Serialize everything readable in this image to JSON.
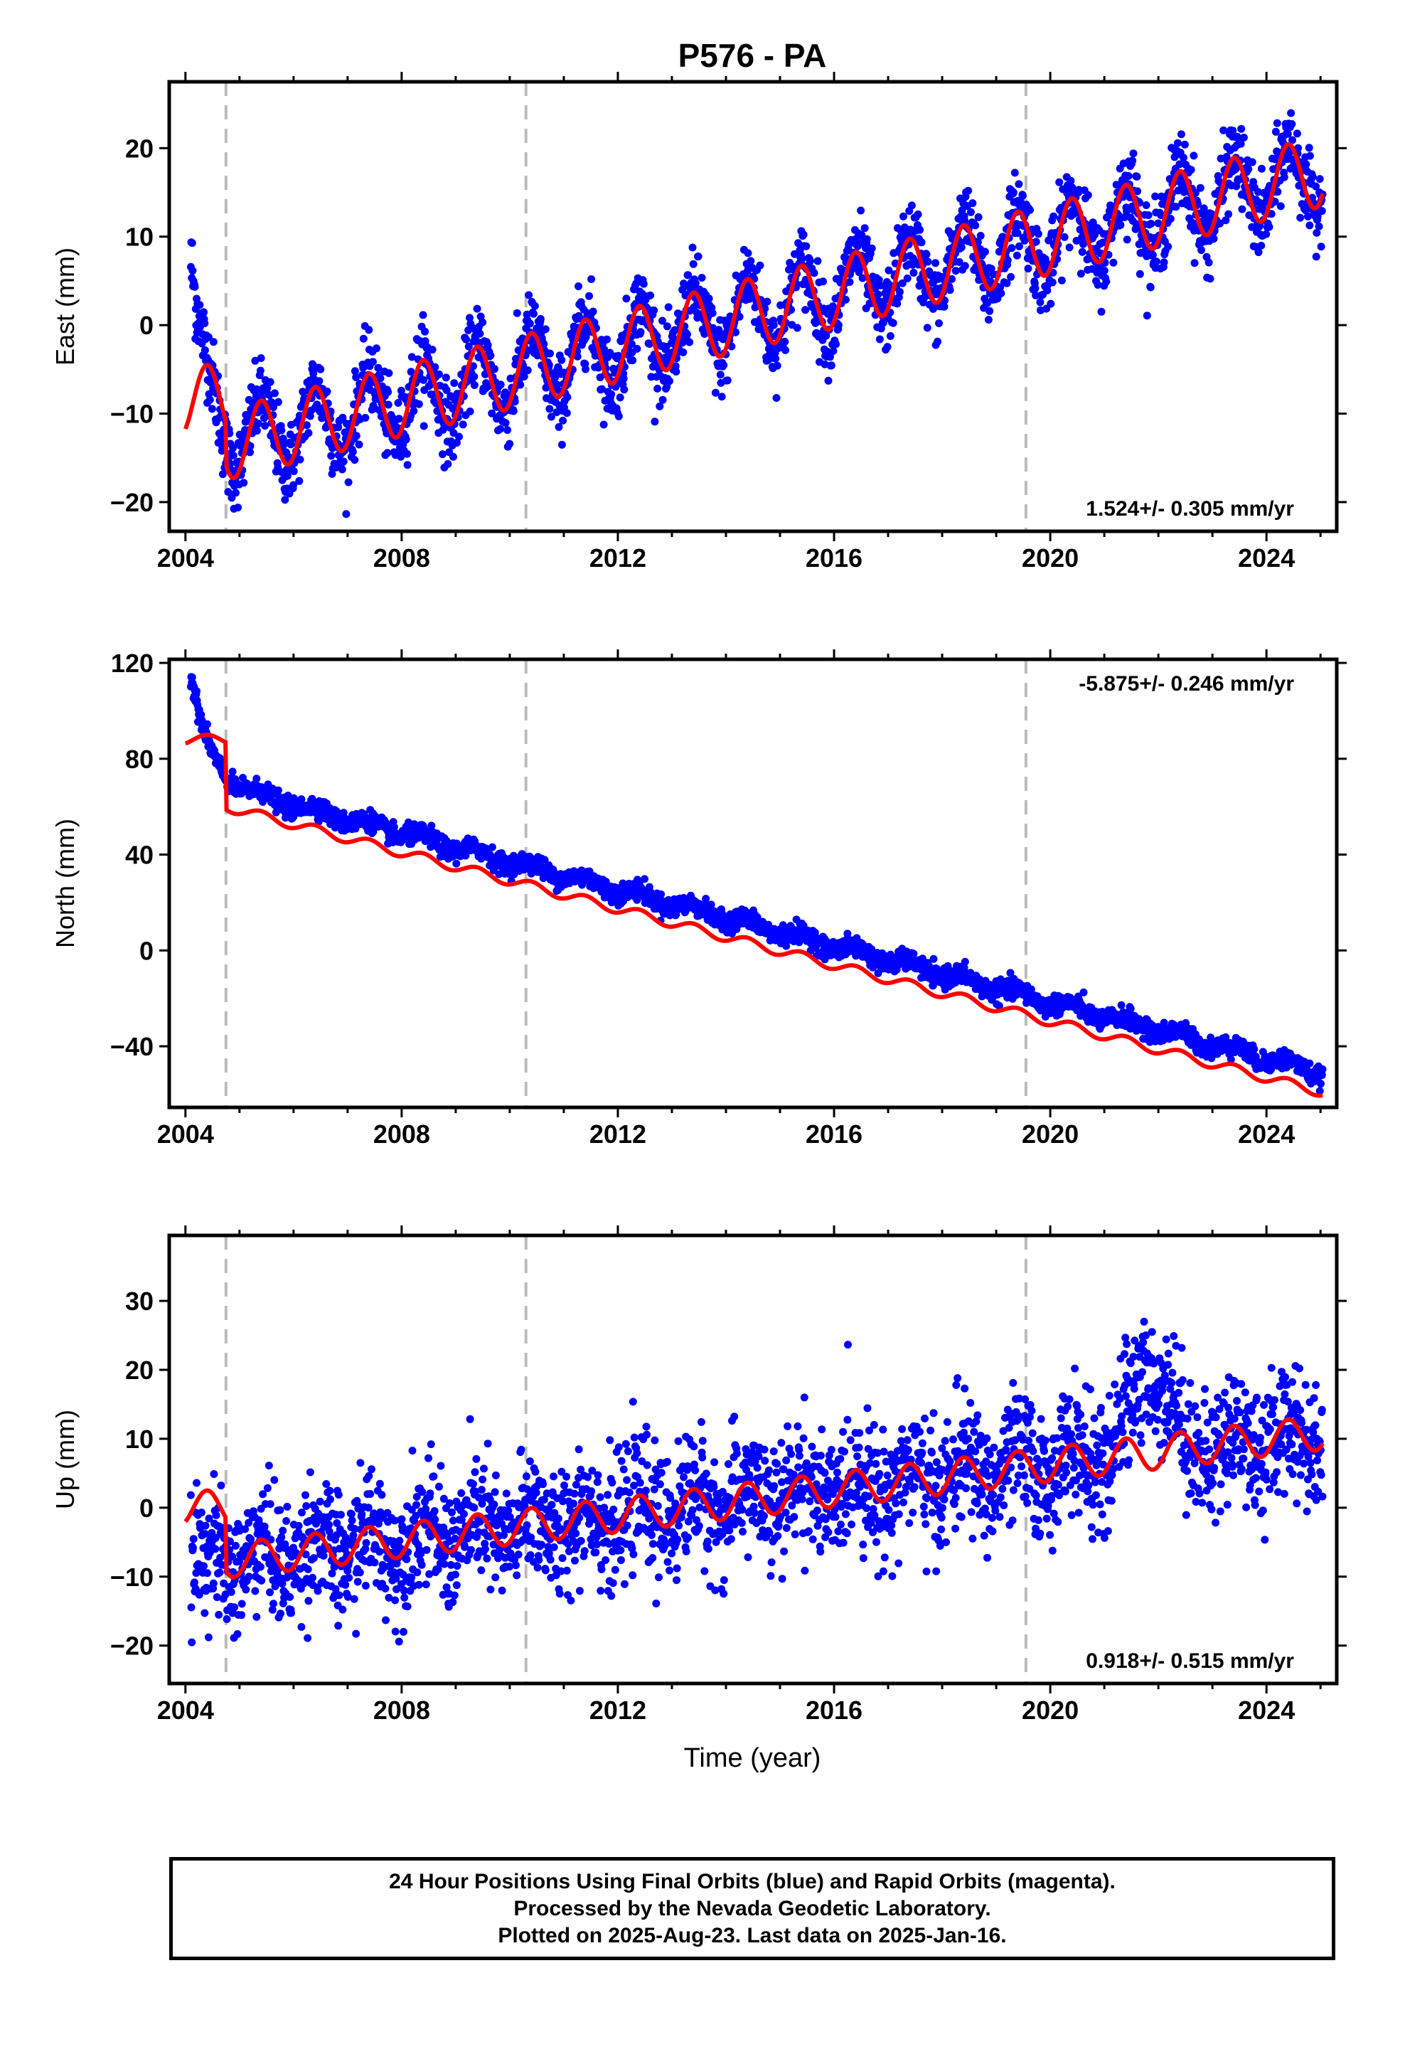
{
  "figure": {
    "title": "P576 - PA",
    "xlabel": "Time (year)",
    "colors": {
      "points": "#0000ff",
      "model": "#ff0000",
      "offsets": "#bbbbbb",
      "frame": "#000000"
    }
  },
  "chart_data": [
    {
      "type": "scatter",
      "name": "East",
      "ylabel": "East (mm)",
      "xlim": [
        2003.7,
        2025.3
      ],
      "ylim": [
        -23.3,
        27.5
      ],
      "x_ticks": [
        "2004",
        "2008",
        "2012",
        "2016",
        "2020",
        "2024"
      ],
      "y_ticks": [
        -20,
        -10,
        0,
        10,
        20
      ],
      "grid": false,
      "rate_label": "1.524+/- 0.305 mm/yr",
      "rate_position": "bottom-right",
      "offset_lines": [
        2004.75,
        2010.3,
        2019.55
      ],
      "series": [
        {
          "name": "24 Hour Positions (Final Orbits)",
          "style": "points",
          "x_range": [
            2004.1,
            2025.04
          ],
          "trend_anchor": {
            "x": 2004.1,
            "y": -14.5
          },
          "rate": 1.524,
          "seasonal_amplitude": 4.0,
          "scatter": 2.2,
          "initial_transient": {
            "start": 8.5,
            "decay_years": 0.25
          }
        },
        {
          "name": "Model",
          "style": "line",
          "x_range": [
            2004.0,
            2025.04
          ],
          "trend_anchor": {
            "x": 2004.1,
            "y": -14.5
          },
          "rate": 1.524,
          "seasonal_amplitude": 4.0
        }
      ]
    },
    {
      "type": "scatter",
      "name": "North",
      "ylabel": "North (mm)",
      "xlim": [
        2003.7,
        2025.3
      ],
      "ylim": [
        -65.5,
        121.5
      ],
      "x_ticks": [
        "2004",
        "2008",
        "2012",
        "2016",
        "2020",
        "2024"
      ],
      "y_ticks": [
        -40,
        0,
        40,
        80,
        120
      ],
      "grid": false,
      "rate_label": "-5.875+/- 0.246 mm/yr",
      "rate_position": "top-right",
      "offset_lines": [
        2004.75,
        2010.3,
        2019.55
      ],
      "series": [
        {
          "name": "24 Hour Positions (Final Orbits)",
          "style": "points",
          "x_range": [
            2004.1,
            2025.04
          ],
          "trend_anchor": {
            "x": 2004.75,
            "y": 68
          },
          "rate": -5.875,
          "seasonal_amplitude": 2.0,
          "scatter": 2.0,
          "initial_transient": {
            "start": 116,
            "decay_years": 0.3
          }
        },
        {
          "name": "Model",
          "style": "line",
          "x_range": [
            2004.0,
            2025.04
          ],
          "trend_anchor": {
            "x": 2004.75,
            "y": 60
          },
          "rate": -5.875,
          "seasonal_amplitude": 2.0,
          "pre_offset_level": 88
        }
      ]
    },
    {
      "type": "scatter",
      "name": "Up",
      "ylabel": "Up (mm)",
      "xlim": [
        2003.7,
        2025.3
      ],
      "ylim": [
        -25.5,
        39.5
      ],
      "x_ticks": [
        "2004",
        "2008",
        "2012",
        "2016",
        "2020",
        "2024"
      ],
      "y_ticks": [
        -20,
        -10,
        0,
        10,
        20,
        30
      ],
      "grid": false,
      "rate_label": "0.918+/- 0.515 mm/yr",
      "rate_position": "bottom-right",
      "offset_lines": [
        2004.75,
        2010.3,
        2019.55
      ],
      "series": [
        {
          "name": "24 Hour Positions (Final Orbits)",
          "style": "points",
          "x_range": [
            2004.1,
            2025.04
          ],
          "trend_anchor": {
            "x": 2005.0,
            "y": -7.5
          },
          "rate": 0.918,
          "seasonal_amplitude": 2.5,
          "scatter": 4.5,
          "anomaly": {
            "x_range": [
              2021.2,
              2022.5
            ],
            "extra": 12
          }
        },
        {
          "name": "Model",
          "style": "line",
          "x_range": [
            2004.0,
            2025.04
          ],
          "trend_anchor": {
            "x": 2005.0,
            "y": -7.5
          },
          "rate": 0.918,
          "seasonal_amplitude": 2.5,
          "pre_offset_level": 0
        }
      ]
    }
  ],
  "notes": [
    "24 Hour Positions Using Final Orbits (blue) and Rapid Orbits (magenta).",
    "Processed by the Nevada Geodetic Laboratory.",
    "Plotted on 2025-Aug-23. Last data on 2025-Jan-16."
  ]
}
